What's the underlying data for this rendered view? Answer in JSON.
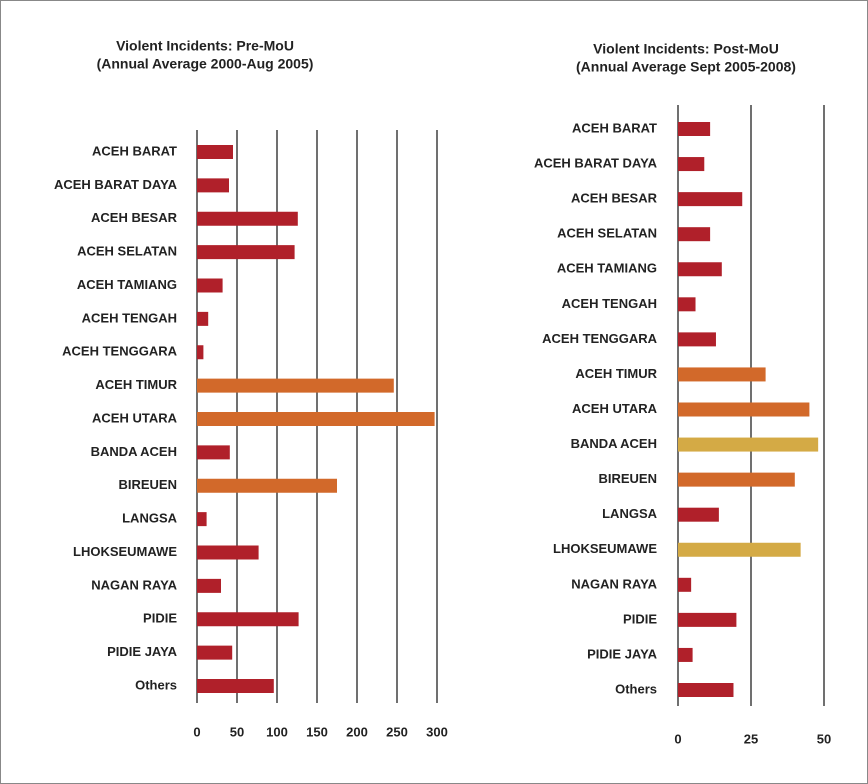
{
  "chart_data": [
    {
      "type": "bar",
      "orientation": "horizontal",
      "title": [
        "Violent Incidents: Pre-MoU",
        "(Annual Average 2000-Aug 2005)"
      ],
      "categories": [
        "ACEH BARAT",
        "ACEH BARAT DAYA",
        "ACEH BESAR",
        "ACEH SELATAN",
        "ACEH TAMIANG",
        "ACEH TENGAH",
        "ACEH TENGGARA",
        "ACEH TIMUR",
        "ACEH UTARA",
        "BANDA ACEH",
        "BIREUEN",
        "LANGSA",
        "LHOKSEUMAWE",
        "NAGAN RAYA",
        "PIDIE",
        "PIDIE JAYA",
        "Others"
      ],
      "values": [
        45,
        40,
        126,
        122,
        32,
        14,
        8,
        246,
        297,
        41,
        175,
        12,
        77,
        30,
        127,
        44,
        96
      ],
      "colors": [
        "#b0202a",
        "#b0202a",
        "#b0202a",
        "#b0202a",
        "#b0202a",
        "#b0202a",
        "#b0202a",
        "#d2692a",
        "#d2692a",
        "#b0202a",
        "#d2692a",
        "#b0202a",
        "#b0202a",
        "#b0202a",
        "#b0202a",
        "#b0202a",
        "#b0202a"
      ],
      "xlim": [
        0,
        300
      ],
      "xticks": [
        0,
        50,
        100,
        150,
        200,
        250,
        300
      ],
      "grid": true
    },
    {
      "type": "bar",
      "orientation": "horizontal",
      "title": [
        "Violent Incidents: Post-MoU",
        "(Annual Average Sept 2005-2008)"
      ],
      "categories": [
        "ACEH BARAT",
        "ACEH BARAT DAYA",
        "ACEH BESAR",
        "ACEH SELATAN",
        "ACEH TAMIANG",
        "ACEH TENGAH",
        "ACEH TENGGARA",
        "ACEH TIMUR",
        "ACEH UTARA",
        "BANDA ACEH",
        "BIREUEN",
        "LANGSA",
        "LHOKSEUMAWE",
        "NAGAN RAYA",
        "PIDIE",
        "PIDIE JAYA",
        "Others"
      ],
      "values": [
        11,
        9,
        22,
        11,
        15,
        6,
        13,
        30,
        45,
        48,
        40,
        14,
        42,
        4.5,
        20,
        5,
        19
      ],
      "colors": [
        "#b0202a",
        "#b0202a",
        "#b0202a",
        "#b0202a",
        "#b0202a",
        "#b0202a",
        "#b0202a",
        "#d2692a",
        "#d2692a",
        "#d4aa45",
        "#d2692a",
        "#b0202a",
        "#d4aa45",
        "#b0202a",
        "#b0202a",
        "#b0202a",
        "#b0202a"
      ],
      "xlim": [
        0,
        50
      ],
      "xticks": [
        0,
        25,
        50
      ],
      "grid": true
    }
  ]
}
